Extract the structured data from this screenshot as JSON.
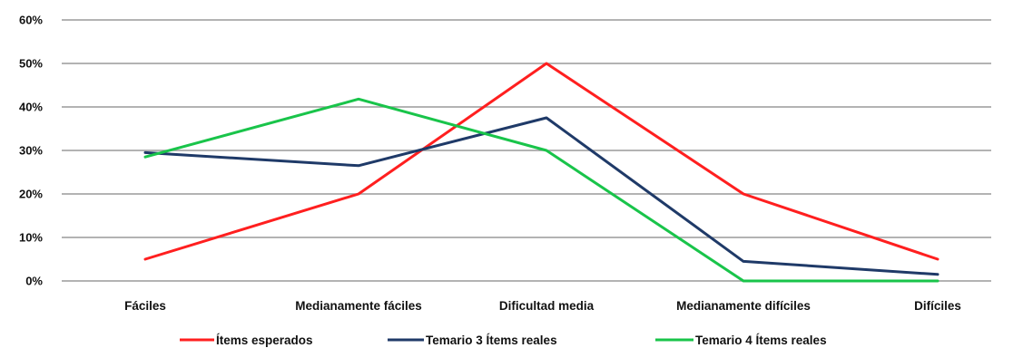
{
  "chart_data": {
    "type": "line",
    "title": "",
    "xlabel": "",
    "ylabel": "",
    "ylim": [
      0,
      60
    ],
    "yticks": [
      "0%",
      "10%",
      "20%",
      "30%",
      "40%",
      "50%",
      "60%"
    ],
    "grid": true,
    "legend_position": "bottom",
    "categories": [
      "Fáciles",
      "Medianamente fáciles",
      "Dificultad media",
      "Medianamente difíciles",
      "Difíciles"
    ],
    "series": [
      {
        "name": "Ítems esperados",
        "color": "#ff1f1f",
        "values": [
          5,
          20,
          50,
          20,
          5
        ]
      },
      {
        "name": "Temario 3 Ítems reales",
        "color": "#1f3a68",
        "values": [
          29.5,
          26.5,
          37.5,
          4.5,
          1.5
        ]
      },
      {
        "name": "Temario 4 Ítems reales",
        "color": "#19c44a",
        "values": [
          28.5,
          41.8,
          30,
          0,
          0
        ]
      }
    ]
  }
}
